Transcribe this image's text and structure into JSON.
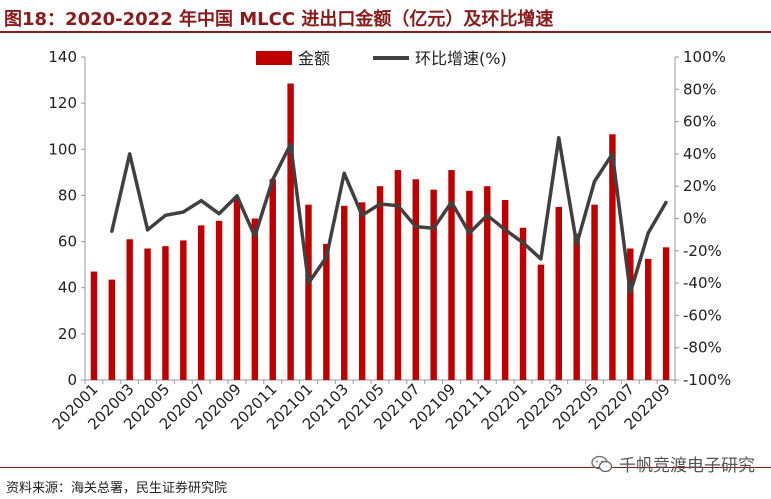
{
  "header": {
    "title": "图18：2020-2022 年中国 MLCC 进出口金额（亿元）及环比增速"
  },
  "footer": {
    "source": "资料来源：海关总署，民生证券研究院",
    "watermark": "千帆竞渡电子研究"
  },
  "colors": {
    "bar": "#c00000",
    "line": "#404040",
    "title": "#8b1a1a"
  },
  "icons": {
    "watermark": "wechat-icon"
  },
  "chart_data": {
    "type": "bar+line",
    "title": "2020-2022 年中国 MLCC 进出口金额（亿元）及环比增速",
    "categories": [
      "202001",
      "202002",
      "202003",
      "202004",
      "202005",
      "202006",
      "202007",
      "202008",
      "202009",
      "202010",
      "202011",
      "202012",
      "202101",
      "202102",
      "202103",
      "202104",
      "202105",
      "202106",
      "202107",
      "202108",
      "202109",
      "202110",
      "202111",
      "202112",
      "202201",
      "202202",
      "202203",
      "202204",
      "202205",
      "202206",
      "202207",
      "202208",
      "202209"
    ],
    "x_tick_labels": [
      "202001",
      "202003",
      "202005",
      "202007",
      "202009",
      "202011",
      "202101",
      "202103",
      "202105",
      "202107",
      "202109",
      "202111",
      "202201",
      "202203",
      "202205",
      "202207",
      "202209"
    ],
    "series": [
      {
        "name": "金额",
        "type": "bar",
        "axis": "left",
        "values": [
          47,
          43.5,
          61,
          57,
          58,
          60.5,
          67,
          69,
          79,
          70,
          87,
          128.5,
          76,
          59,
          75.5,
          77,
          84,
          91,
          87,
          82.5,
          91,
          82,
          84,
          78,
          66,
          50,
          75,
          63.5,
          76,
          106.5,
          57,
          52.5,
          57.5
        ]
      },
      {
        "name": "环比增速(%)",
        "type": "line",
        "axis": "right",
        "values": [
          null,
          -8,
          40,
          -7,
          2,
          4,
          11,
          3,
          14,
          -11,
          24,
          46,
          -40,
          -24,
          28,
          2,
          9,
          8,
          -5,
          -6,
          10,
          -9,
          2,
          -7,
          -15,
          -25,
          50,
          -16,
          23,
          40,
          -46,
          -9,
          10
        ]
      }
    ],
    "y_left": {
      "min": 0,
      "max": 140,
      "ticks": [
        "0",
        "20",
        "40",
        "60",
        "80",
        "100",
        "120",
        "140"
      ]
    },
    "y_right": {
      "min": -100,
      "max": 100,
      "ticks": [
        "-100%",
        "-80%",
        "-60%",
        "-40%",
        "-20%",
        "0%",
        "20%",
        "40%",
        "60%",
        "80%",
        "100%"
      ]
    },
    "legend": {
      "position": "top-center",
      "labels": [
        "金额",
        "环比增速(%)"
      ]
    },
    "grid": false
  }
}
